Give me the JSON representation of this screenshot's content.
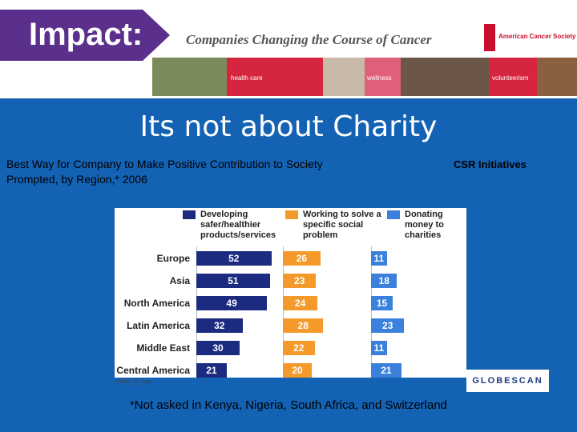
{
  "header": {
    "brand": "Impact:",
    "tagline": "Companies Changing the Course of Cancer",
    "logo": "American Cancer Society",
    "banner_labels": [
      "health care",
      "wellness",
      "volunteerism"
    ]
  },
  "slide": {
    "title": "Its not about Charity",
    "subtitle": "Best Way for Company to Make Positive Contribution to Society Prompted, by Region,* 2006",
    "side_label": "CSR Initiatives",
    "footnote": "*Not asked in Kenya, Nigeria, South Africa, and Switzerland"
  },
  "chart_data": {
    "type": "bar",
    "orientation": "horizontal",
    "layout": "panels",
    "categories": [
      "Europe",
      "Asia",
      "North America",
      "Latin America",
      "Middle East",
      "Central America"
    ],
    "series": [
      {
        "name": "Developing safer/healthier products/services",
        "color": "#1c2a80",
        "values": [
          52,
          51,
          49,
          32,
          30,
          21
        ]
      },
      {
        "name": "Working to solve a specific social problem",
        "color": "#f39a2b",
        "values": [
          26,
          23,
          24,
          28,
          22,
          20
        ]
      },
      {
        "name": "Donating money to charities",
        "color": "#3a80dc",
        "values": [
          11,
          18,
          15,
          23,
          11,
          21
        ]
      }
    ],
    "source_code": "csr06_12_reg",
    "brand": "GLOBESCAN"
  }
}
